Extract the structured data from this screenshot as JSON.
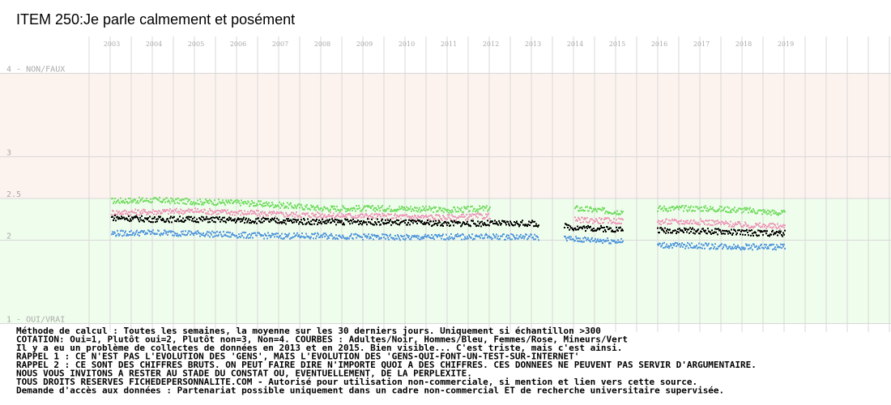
{
  "chart_data": {
    "type": "scatter",
    "title": "ITEM 250:Je parle calmement et posément",
    "years": [
      "2003",
      "2004",
      "2005",
      "2006",
      "2007",
      "2008",
      "2009",
      "2010",
      "2011",
      "2012",
      "2013",
      "2014",
      "2015",
      "2016",
      "2017",
      "2018",
      "2019"
    ],
    "y_ticks": [
      {
        "value": 4,
        "label": "4 - NON/FAUX"
      },
      {
        "value": 3,
        "label": "3"
      },
      {
        "value": 2.5,
        "label": "2.5"
      },
      {
        "value": 2,
        "label": "2"
      },
      {
        "value": 1,
        "label": "1 - OUI/VRAI"
      }
    ],
    "ylim": [
      1,
      4
    ],
    "xlim": [
      2002.5,
      2020.5
    ],
    "bands": [
      {
        "from": 2.5,
        "to": 4,
        "color": "#fdf3ee"
      },
      {
        "from": 1,
        "to": 2.5,
        "color": "#effdec"
      }
    ],
    "gaps": [
      [
        2013.15,
        2013.75
      ],
      [
        2015.15,
        2015.95
      ]
    ],
    "series": [
      {
        "key": "adultes",
        "color": "#000000",
        "values": [
          {
            "x": 2003.0,
            "y": 2.27
          },
          {
            "x": 2004.0,
            "y": 2.25
          },
          {
            "x": 2005.0,
            "y": 2.25
          },
          {
            "x": 2006.0,
            "y": 2.24
          },
          {
            "x": 2007.0,
            "y": 2.23
          },
          {
            "x": 2008.0,
            "y": 2.22
          },
          {
            "x": 2009.0,
            "y": 2.22
          },
          {
            "x": 2010.0,
            "y": 2.21
          },
          {
            "x": 2011.0,
            "y": 2.2
          },
          {
            "x": 2012.0,
            "y": 2.2
          },
          {
            "x": 2013.0,
            "y": 2.2
          },
          {
            "x": 2014.0,
            "y": 2.15
          },
          {
            "x": 2015.0,
            "y": 2.13
          },
          {
            "x": 2016.0,
            "y": 2.12
          },
          {
            "x": 2017.0,
            "y": 2.11
          },
          {
            "x": 2018.0,
            "y": 2.09
          },
          {
            "x": 2019.0,
            "y": 2.08
          }
        ]
      },
      {
        "key": "hommes",
        "color": "#5599dd",
        "values": [
          {
            "x": 2003.0,
            "y": 2.08
          },
          {
            "x": 2004.0,
            "y": 2.09
          },
          {
            "x": 2005.0,
            "y": 2.08
          },
          {
            "x": 2006.0,
            "y": 2.06
          },
          {
            "x": 2007.0,
            "y": 2.05
          },
          {
            "x": 2008.0,
            "y": 2.05
          },
          {
            "x": 2009.0,
            "y": 2.04
          },
          {
            "x": 2010.0,
            "y": 2.03
          },
          {
            "x": 2011.0,
            "y": 2.04
          },
          {
            "x": 2012.0,
            "y": 2.04
          },
          {
            "x": 2013.0,
            "y": 2.04
          },
          {
            "x": 2014.0,
            "y": 2.01
          },
          {
            "x": 2015.0,
            "y": 1.99
          },
          {
            "x": 2016.0,
            "y": 1.94
          },
          {
            "x": 2017.0,
            "y": 1.93
          },
          {
            "x": 2018.0,
            "y": 1.92
          },
          {
            "x": 2019.0,
            "y": 1.92
          }
        ]
      },
      {
        "key": "femmes",
        "color": "#ee99bb",
        "values": [
          {
            "x": 2003.0,
            "y": 2.33
          },
          {
            "x": 2004.0,
            "y": 2.34
          },
          {
            "x": 2005.0,
            "y": 2.35
          },
          {
            "x": 2006.0,
            "y": 2.33
          },
          {
            "x": 2007.0,
            "y": 2.31
          },
          {
            "x": 2008.0,
            "y": 2.3
          },
          {
            "x": 2009.0,
            "y": 2.29
          },
          {
            "x": 2010.0,
            "y": 2.28
          },
          {
            "x": 2011.0,
            "y": 2.27
          },
          {
            "x": 2012.0,
            "y": 2.29
          },
          {
            "x": 2014.0,
            "y": 2.24
          },
          {
            "x": 2015.0,
            "y": 2.23
          },
          {
            "x": 2016.0,
            "y": 2.22
          },
          {
            "x": 2017.0,
            "y": 2.22
          },
          {
            "x": 2018.0,
            "y": 2.18
          },
          {
            "x": 2019.0,
            "y": 2.16
          }
        ]
      },
      {
        "key": "mineurs",
        "color": "#77dd66",
        "values": [
          {
            "x": 2003.0,
            "y": 2.47
          },
          {
            "x": 2004.0,
            "y": 2.48
          },
          {
            "x": 2005.0,
            "y": 2.46
          },
          {
            "x": 2006.0,
            "y": 2.45
          },
          {
            "x": 2007.0,
            "y": 2.42
          },
          {
            "x": 2008.0,
            "y": 2.38
          },
          {
            "x": 2009.0,
            "y": 2.38
          },
          {
            "x": 2010.0,
            "y": 2.38
          },
          {
            "x": 2011.0,
            "y": 2.36
          },
          {
            "x": 2012.0,
            "y": 2.38
          },
          {
            "x": 2014.0,
            "y": 2.38
          },
          {
            "x": 2015.0,
            "y": 2.34
          },
          {
            "x": 2016.0,
            "y": 2.38
          },
          {
            "x": 2017.0,
            "y": 2.38
          },
          {
            "x": 2018.0,
            "y": 2.36
          },
          {
            "x": 2019.0,
            "y": 2.32
          }
        ]
      }
    ]
  },
  "notes": [
    "Méthode de calcul : Toutes les semaines, la moyenne sur les 30 derniers jours. Uniquement si échantillon >300",
    "COTATION: Oui=1, Plutôt oui=2, Plutôt non=3, Non=4. COURBES : Adultes/Noir, Hommes/Bleu, Femmes/Rose, Mineurs/Vert",
    "Il y a eu un problème de collectes de données en 2013 et en 2015. Bien visible... C'est triste, mais c'est ainsi.",
    "RAPPEL 1 : CE N'EST PAS L'EVOLUTION DES 'GENS', MAIS L'EVOLUTION DES 'GENS-QUI-FONT-UN-TEST-SUR-INTERNET'",
    "RAPPEL 2 : CE SONT DES CHIFFRES BRUTS. ON PEUT FAIRE DIRE N'IMPORTE QUOI A DES CHIFFRES. CES DONNEES NE PEUVENT PAS SERVIR D'ARGUMENTAIRE.",
    "           NOUS VOUS INVITONS A RESTER AU STADE DU CONSTAT OU, EVENTUELLEMENT,  DE LA PERPLEXITE.",
    "TOUS DROITS RESERVES FICHEDEPERSONNALITE.COM - Autorisé pour utilisation non-commerciale, si mention et lien vers cette source.",
    "Demande d'accès aux données : Partenariat possible uniquement dans un cadre non-commercial ET de recherche universitaire supervisée."
  ]
}
